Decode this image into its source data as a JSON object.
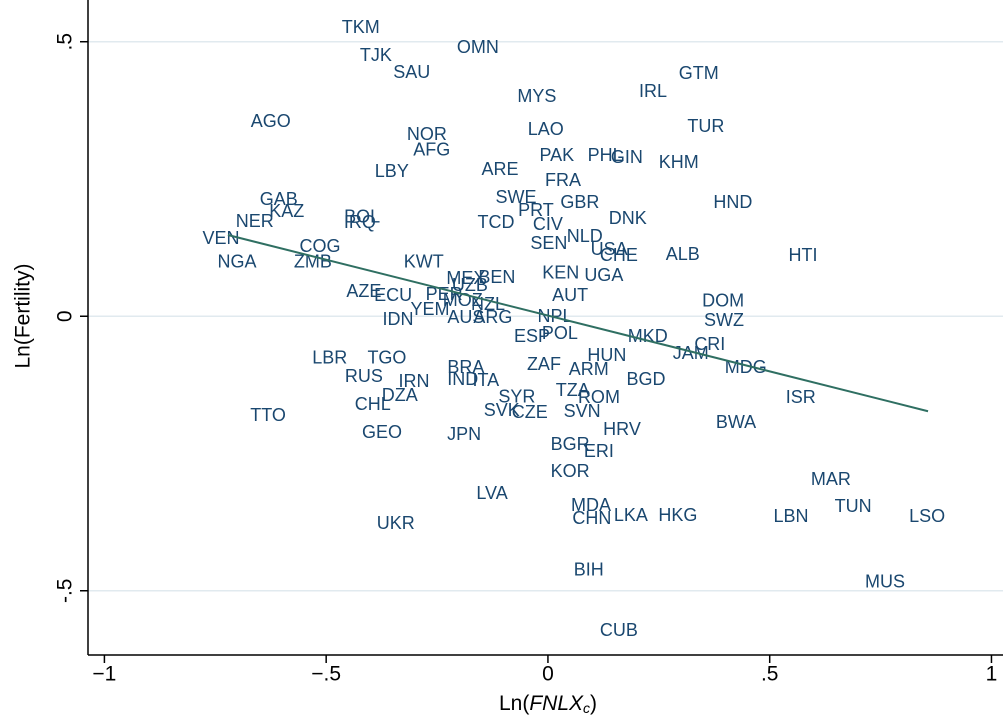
{
  "chart_data": {
    "type": "scatter",
    "x_label_parts": [
      "Ln(",
      "FNLX",
      "c",
      ")"
    ],
    "y_label": "Ln(Fertility)",
    "xlim": [
      -1.037,
      1.026
    ],
    "ylim": [
      -0.617,
      0.576
    ],
    "xticks": [
      {
        "value": -1,
        "label": "−1"
      },
      {
        "value": -0.5,
        "label": "−.5"
      },
      0,
      {
        "value": 0.5,
        "label": ".5"
      },
      1
    ],
    "yticks": [
      {
        "value": -0.5,
        "label": "-.5"
      },
      0,
      {
        "value": 0.5,
        "label": ".5"
      }
    ],
    "grid": true,
    "series": [
      {
        "color": "#1a476f",
        "labels": [
          "TKM",
          "OMN",
          "TJK",
          "SAU",
          "GTM",
          "MYS",
          "IRL",
          "AGO",
          "NOR",
          "LAO",
          "TUR",
          "AFG",
          "PAK",
          "PHL",
          "GIN",
          "KHM",
          "LBY",
          "ARE",
          "FRA",
          "GAB",
          "SWE",
          "GBR",
          "HND",
          "KAZ",
          "NER",
          "BOL",
          "IRQ",
          "PRT",
          "CIV",
          "TCD",
          "DNK",
          "NLD",
          "VEN",
          "SEN",
          "USA",
          "COG",
          "CHE",
          "ALB",
          "HTI",
          "ZMB",
          "NGA",
          "KWT",
          "MEX",
          "BEN",
          "KEN",
          "UGA",
          "AZE",
          "ECU",
          "PER",
          "UZB",
          "AUT",
          "DOM",
          "MOZ",
          "YEM",
          "NZL",
          "ARG",
          "AUS",
          "IDN",
          "NPL",
          "ESP",
          "POL",
          "MKD",
          "SWZ",
          "CRI",
          "JAM",
          "LBR",
          "TGO",
          "ZAF",
          "HUN",
          "MDG",
          "RUS",
          "IRN",
          "BRA",
          "IND",
          "ITA",
          "ARM",
          "BGD",
          "ISR",
          "DZA",
          "SYR",
          "TZA",
          "ROM",
          "CHL",
          "SVK",
          "CZE",
          "SVN",
          "HRV",
          "TTO",
          "BWA",
          "GEO",
          "JPN",
          "BGR",
          "ERI",
          "KOR",
          "MAR",
          "LVA",
          "MDA",
          "TUN",
          "CHN",
          "LKA",
          "HKG",
          "LBN",
          "LSO",
          "UKR",
          "BIH",
          "MUS",
          "CUB"
        ],
        "x": [
          -0.422,
          -0.158,
          -0.388,
          -0.307,
          0.34,
          -0.025,
          0.237,
          -0.625,
          -0.273,
          -0.005,
          0.356,
          -0.262,
          0.02,
          0.129,
          0.178,
          0.295,
          -0.352,
          -0.108,
          0.034,
          -0.607,
          -0.072,
          0.072,
          0.417,
          -0.589,
          -0.661,
          -0.419,
          -0.424,
          -0.027,
          0.0,
          -0.117,
          0.18,
          0.083,
          -0.737,
          0.002,
          0.138,
          -0.514,
          0.16,
          0.304,
          0.575,
          -0.53,
          -0.701,
          -0.28,
          -0.185,
          -0.115,
          0.029,
          0.126,
          -0.415,
          -0.349,
          -0.234,
          -0.176,
          0.05,
          0.395,
          -0.192,
          -0.266,
          -0.135,
          -0.124,
          -0.185,
          -0.338,
          0.016,
          -0.036,
          0.027,
          0.225,
          0.397,
          0.365,
          0.322,
          -0.492,
          -0.363,
          -0.009,
          0.133,
          0.446,
          -0.415,
          -0.302,
          -0.185,
          -0.192,
          -0.14,
          0.092,
          0.221,
          0.57,
          -0.334,
          -0.07,
          0.056,
          0.115,
          -0.395,
          -0.104,
          -0.041,
          0.077,
          0.167,
          -0.631,
          0.424,
          -0.374,
          -0.189,
          0.05,
          0.115,
          0.05,
          0.638,
          -0.126,
          0.097,
          0.688,
          0.099,
          0.187,
          0.293,
          0.548,
          0.855,
          -0.343,
          0.092,
          0.76,
          0.16
        ],
        "y": [
          0.525,
          0.488,
          0.474,
          0.443,
          0.441,
          0.399,
          0.408,
          0.353,
          0.33,
          0.339,
          0.344,
          0.301,
          0.291,
          0.291,
          0.288,
          0.279,
          0.262,
          0.266,
          0.246,
          0.211,
          0.215,
          0.206,
          0.206,
          0.189,
          0.171,
          0.179,
          0.169,
          0.191,
          0.166,
          0.169,
          0.177,
          0.144,
          0.14,
          0.131,
          0.12,
          0.126,
          0.109,
          0.111,
          0.109,
          0.097,
          0.097,
          0.097,
          0.067,
          0.069,
          0.077,
          0.073,
          0.044,
          0.036,
          0.038,
          0.055,
          0.036,
          0.026,
          0.027,
          0.011,
          0.02,
          -0.004,
          -0.004,
          -0.007,
          -0.002,
          -0.038,
          -0.033,
          -0.038,
          -0.009,
          -0.053,
          -0.069,
          -0.077,
          -0.077,
          -0.089,
          -0.073,
          -0.095,
          -0.111,
          -0.12,
          -0.095,
          -0.117,
          -0.118,
          -0.098,
          -0.117,
          -0.149,
          -0.146,
          -0.148,
          -0.137,
          -0.149,
          -0.162,
          -0.173,
          -0.177,
          -0.175,
          -0.208,
          -0.182,
          -0.195,
          -0.213,
          -0.217,
          -0.235,
          -0.248,
          -0.284,
          -0.299,
          -0.324,
          -0.346,
          -0.348,
          -0.37,
          -0.364,
          -0.364,
          -0.366,
          -0.366,
          -0.379,
          -0.464,
          -0.485,
          -0.574
        ]
      }
    ],
    "fit_line": {
      "color": "#2f6f62",
      "x": [
        -0.7215,
        0.857
      ],
      "y": [
        0.148,
        -0.173
      ]
    }
  }
}
